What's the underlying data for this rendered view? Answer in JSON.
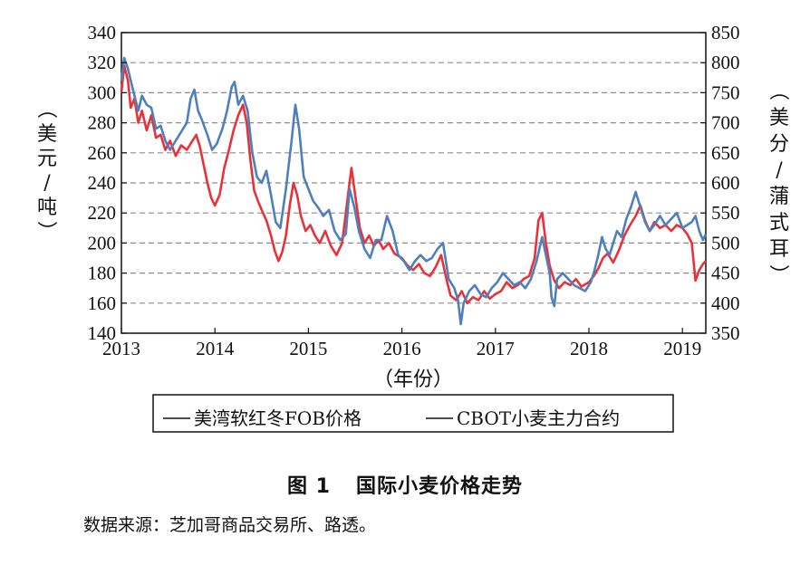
{
  "chart_data": {
    "type": "line",
    "title": "",
    "xlabel": "（年份）",
    "ylabel_left": "（美元/吨）",
    "ylabel_right": "（美分/蒲式耳）",
    "x_ticks": [
      "2013",
      "2014",
      "2015",
      "2016",
      "2017",
      "2018",
      "2019"
    ],
    "x_range": [
      2013.0,
      2019.25
    ],
    "y_left_ticks": [
      "140",
      "160",
      "180",
      "200",
      "220",
      "240",
      "260",
      "280",
      "300",
      "320",
      "340"
    ],
    "y_left_range": [
      140,
      340
    ],
    "y_right_ticks": [
      "350",
      "400",
      "450",
      "500",
      "550",
      "600",
      "650",
      "700",
      "750",
      "800",
      "850"
    ],
    "y_right_range": [
      350,
      850
    ],
    "grid": "horizontal dashed",
    "legend_position": "bottom",
    "series": [
      {
        "name": "美湾软红冬FOB价格",
        "axis": "left",
        "color": "#e8323a",
        "points": [
          [
            2013.0,
            300
          ],
          [
            2013.03,
            318
          ],
          [
            2013.07,
            308
          ],
          [
            2013.1,
            290
          ],
          [
            2013.14,
            296
          ],
          [
            2013.18,
            280
          ],
          [
            2013.22,
            288
          ],
          [
            2013.27,
            275
          ],
          [
            2013.32,
            285
          ],
          [
            2013.37,
            270
          ],
          [
            2013.42,
            272
          ],
          [
            2013.47,
            262
          ],
          [
            2013.52,
            268
          ],
          [
            2013.58,
            258
          ],
          [
            2013.64,
            265
          ],
          [
            2013.7,
            262
          ],
          [
            2013.76,
            268
          ],
          [
            2013.8,
            272
          ],
          [
            2013.84,
            264
          ],
          [
            2013.88,
            252
          ],
          [
            2013.92,
            240
          ],
          [
            2013.96,
            230
          ],
          [
            2014.0,
            225
          ],
          [
            2014.05,
            232
          ],
          [
            2014.1,
            250
          ],
          [
            2014.15,
            262
          ],
          [
            2014.2,
            275
          ],
          [
            2014.25,
            285
          ],
          [
            2014.3,
            292
          ],
          [
            2014.34,
            280
          ],
          [
            2014.38,
            255
          ],
          [
            2014.42,
            235
          ],
          [
            2014.46,
            228
          ],
          [
            2014.5,
            222
          ],
          [
            2014.55,
            215
          ],
          [
            2014.6,
            205
          ],
          [
            2014.64,
            195
          ],
          [
            2014.68,
            188
          ],
          [
            2014.72,
            194
          ],
          [
            2014.76,
            205
          ],
          [
            2014.8,
            225
          ],
          [
            2014.84,
            240
          ],
          [
            2014.88,
            232
          ],
          [
            2014.92,
            218
          ],
          [
            2014.97,
            208
          ],
          [
            2015.02,
            212
          ],
          [
            2015.07,
            205
          ],
          [
            2015.12,
            200
          ],
          [
            2015.18,
            208
          ],
          [
            2015.24,
            198
          ],
          [
            2015.3,
            192
          ],
          [
            2015.36,
            200
          ],
          [
            2015.42,
            230
          ],
          [
            2015.46,
            250
          ],
          [
            2015.5,
            232
          ],
          [
            2015.55,
            210
          ],
          [
            2015.6,
            200
          ],
          [
            2015.65,
            205
          ],
          [
            2015.7,
            198
          ],
          [
            2015.75,
            202
          ],
          [
            2015.8,
            196
          ],
          [
            2015.86,
            200
          ],
          [
            2015.92,
            193
          ],
          [
            2016.0,
            190
          ],
          [
            2016.06,
            185
          ],
          [
            2016.12,
            182
          ],
          [
            2016.18,
            186
          ],
          [
            2016.24,
            180
          ],
          [
            2016.3,
            178
          ],
          [
            2016.36,
            184
          ],
          [
            2016.42,
            192
          ],
          [
            2016.48,
            175
          ],
          [
            2016.52,
            165
          ],
          [
            2016.58,
            162
          ],
          [
            2016.64,
            168
          ],
          [
            2016.7,
            160
          ],
          [
            2016.76,
            164
          ],
          [
            2016.82,
            162
          ],
          [
            2016.88,
            168
          ],
          [
            2016.94,
            163
          ],
          [
            2017.0,
            166
          ],
          [
            2017.06,
            168
          ],
          [
            2017.12,
            174
          ],
          [
            2017.18,
            170
          ],
          [
            2017.24,
            172
          ],
          [
            2017.3,
            176
          ],
          [
            2017.36,
            178
          ],
          [
            2017.42,
            190
          ],
          [
            2017.46,
            215
          ],
          [
            2017.5,
            220
          ],
          [
            2017.54,
            200
          ],
          [
            2017.58,
            185
          ],
          [
            2017.63,
            175
          ],
          [
            2017.68,
            170
          ],
          [
            2017.74,
            174
          ],
          [
            2017.8,
            172
          ],
          [
            2017.86,
            176
          ],
          [
            2017.92,
            171
          ],
          [
            2018.0,
            174
          ],
          [
            2018.05,
            178
          ],
          [
            2018.1,
            183
          ],
          [
            2018.15,
            190
          ],
          [
            2018.2,
            193
          ],
          [
            2018.26,
            187
          ],
          [
            2018.32,
            195
          ],
          [
            2018.38,
            205
          ],
          [
            2018.44,
            212
          ],
          [
            2018.5,
            218
          ],
          [
            2018.55,
            225
          ],
          [
            2018.6,
            215
          ],
          [
            2018.65,
            208
          ],
          [
            2018.7,
            214
          ],
          [
            2018.76,
            210
          ],
          [
            2018.82,
            212
          ],
          [
            2018.88,
            208
          ],
          [
            2018.94,
            212
          ],
          [
            2019.0,
            210
          ],
          [
            2019.05,
            206
          ],
          [
            2019.1,
            200
          ],
          [
            2019.14,
            175
          ],
          [
            2019.18,
            182
          ],
          [
            2019.22,
            186
          ],
          [
            2019.25,
            188
          ]
        ]
      },
      {
        "name": "CBOT小麦主力合约",
        "axis": "right",
        "color": "#4f7fbd",
        "points": [
          [
            2013.0,
            770
          ],
          [
            2013.03,
            808
          ],
          [
            2013.07,
            790
          ],
          [
            2013.1,
            770
          ],
          [
            2013.14,
            745
          ],
          [
            2013.18,
            720
          ],
          [
            2013.22,
            745
          ],
          [
            2013.27,
            730
          ],
          [
            2013.32,
            725
          ],
          [
            2013.37,
            690
          ],
          [
            2013.42,
            695
          ],
          [
            2013.47,
            670
          ],
          [
            2013.52,
            655
          ],
          [
            2013.58,
            670
          ],
          [
            2013.64,
            685
          ],
          [
            2013.7,
            700
          ],
          [
            2013.74,
            740
          ],
          [
            2013.78,
            755
          ],
          [
            2013.82,
            720
          ],
          [
            2013.86,
            705
          ],
          [
            2013.92,
            680
          ],
          [
            2013.97,
            655
          ],
          [
            2014.02,
            665
          ],
          [
            2014.08,
            690
          ],
          [
            2014.13,
            720
          ],
          [
            2014.18,
            760
          ],
          [
            2014.21,
            768
          ],
          [
            2014.25,
            730
          ],
          [
            2014.3,
            745
          ],
          [
            2014.35,
            720
          ],
          [
            2014.4,
            650
          ],
          [
            2014.45,
            610
          ],
          [
            2014.5,
            600
          ],
          [
            2014.55,
            620
          ],
          [
            2014.6,
            580
          ],
          [
            2014.65,
            535
          ],
          [
            2014.7,
            525
          ],
          [
            2014.76,
            590
          ],
          [
            2014.82,
            670
          ],
          [
            2014.86,
            730
          ],
          [
            2014.9,
            690
          ],
          [
            2014.95,
            610
          ],
          [
            2015.0,
            590
          ],
          [
            2015.05,
            570
          ],
          [
            2015.1,
            560
          ],
          [
            2015.16,
            545
          ],
          [
            2015.22,
            555
          ],
          [
            2015.28,
            520
          ],
          [
            2015.34,
            505
          ],
          [
            2015.4,
            515
          ],
          [
            2015.44,
            590
          ],
          [
            2015.49,
            560
          ],
          [
            2015.54,
            520
          ],
          [
            2015.6,
            490
          ],
          [
            2015.66,
            475
          ],
          [
            2015.72,
            505
          ],
          [
            2015.78,
            505
          ],
          [
            2015.84,
            545
          ],
          [
            2015.9,
            520
          ],
          [
            2015.96,
            480
          ],
          [
            2016.02,
            470
          ],
          [
            2016.08,
            455
          ],
          [
            2016.14,
            470
          ],
          [
            2016.2,
            480
          ],
          [
            2016.26,
            470
          ],
          [
            2016.32,
            475
          ],
          [
            2016.38,
            490
          ],
          [
            2016.44,
            500
          ],
          [
            2016.5,
            440
          ],
          [
            2016.56,
            425
          ],
          [
            2016.6,
            405
          ],
          [
            2016.63,
            365
          ],
          [
            2016.66,
            400
          ],
          [
            2016.72,
            420
          ],
          [
            2016.78,
            430
          ],
          [
            2016.84,
            415
          ],
          [
            2016.9,
            410
          ],
          [
            2016.96,
            425
          ],
          [
            2017.02,
            435
          ],
          [
            2017.08,
            450
          ],
          [
            2017.14,
            440
          ],
          [
            2017.2,
            430
          ],
          [
            2017.26,
            435
          ],
          [
            2017.32,
            425
          ],
          [
            2017.38,
            440
          ],
          [
            2017.44,
            470
          ],
          [
            2017.5,
            510
          ],
          [
            2017.54,
            480
          ],
          [
            2017.58,
            450
          ],
          [
            2017.6,
            410
          ],
          [
            2017.63,
            395
          ],
          [
            2017.66,
            440
          ],
          [
            2017.72,
            450
          ],
          [
            2017.78,
            440
          ],
          [
            2017.84,
            430
          ],
          [
            2017.9,
            425
          ],
          [
            2017.96,
            420
          ],
          [
            2018.02,
            435
          ],
          [
            2018.06,
            455
          ],
          [
            2018.1,
            480
          ],
          [
            2018.14,
            510
          ],
          [
            2018.18,
            490
          ],
          [
            2018.22,
            480
          ],
          [
            2018.26,
            500
          ],
          [
            2018.3,
            520
          ],
          [
            2018.35,
            510
          ],
          [
            2018.4,
            540
          ],
          [
            2018.45,
            560
          ],
          [
            2018.5,
            585
          ],
          [
            2018.55,
            560
          ],
          [
            2018.6,
            535
          ],
          [
            2018.65,
            520
          ],
          [
            2018.7,
            530
          ],
          [
            2018.76,
            545
          ],
          [
            2018.82,
            530
          ],
          [
            2018.88,
            540
          ],
          [
            2018.94,
            550
          ],
          [
            2019.0,
            525
          ],
          [
            2019.05,
            530
          ],
          [
            2019.1,
            535
          ],
          [
            2019.14,
            545
          ],
          [
            2019.18,
            520
          ],
          [
            2019.22,
            505
          ],
          [
            2019.25,
            515
          ]
        ]
      }
    ]
  },
  "figure": {
    "caption_number": "图 1",
    "caption_title": "国际小麦价格走势",
    "source": "数据来源：芝加哥商品交易所、路透。"
  }
}
